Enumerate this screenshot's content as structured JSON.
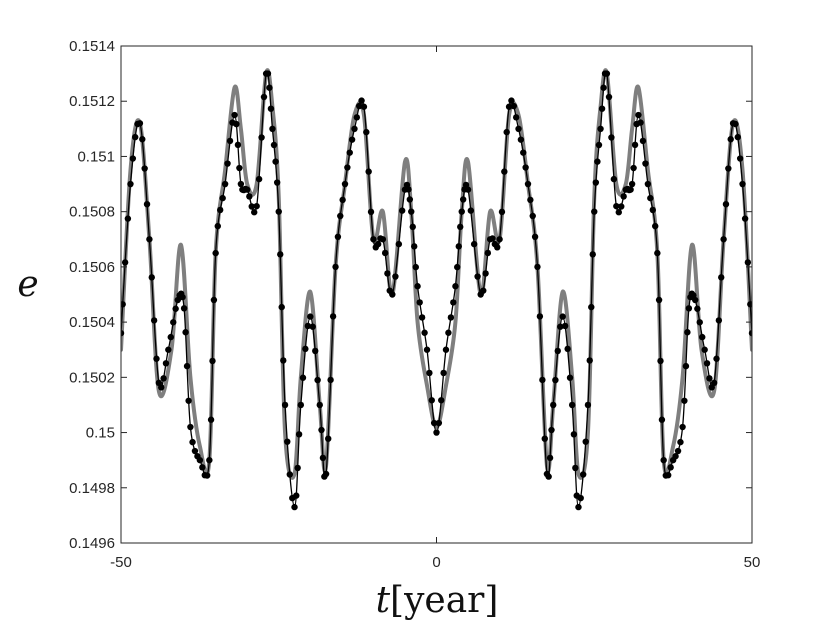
{
  "chart_data": {
    "type": "line",
    "title": "",
    "xlabel_var": "t",
    "xlabel_unit": "[year]",
    "ylabel": "e",
    "xlim": [
      -50,
      50
    ],
    "ylim": [
      0.1496,
      0.1514
    ],
    "x_ticks": [
      -50,
      0,
      50
    ],
    "x_tick_labels": [
      "-50",
      "0",
      "50"
    ],
    "y_ticks": [
      0.1496,
      0.1498,
      0.15,
      0.1502,
      0.1504,
      0.1506,
      0.1508,
      0.151,
      0.1512,
      0.1514
    ],
    "y_tick_labels": [
      "0.1496",
      "0.1498",
      "0.15",
      "0.1502",
      "0.1504",
      "0.1506",
      "0.1508",
      "0.151",
      "0.1512",
      "0.1514"
    ],
    "grid": false,
    "legend": "none",
    "colors": {
      "model_line": "#7f7f7f",
      "observed": "#000000",
      "axes": "#262626"
    },
    "series": [
      {
        "style": "thick-gray-line",
        "x": [
          -50,
          -48.5,
          -47,
          -45.5,
          -44,
          -42,
          -40.5,
          -39,
          -37.5,
          -36,
          -35,
          -33.5,
          -32,
          -31,
          -30,
          -28.5,
          -27,
          -26,
          -25,
          -24,
          -22.5,
          -21.5,
          -20,
          -18.5,
          -17.5,
          -16,
          -14.5,
          -13,
          -11.5,
          -10,
          -8.5,
          -7,
          -5,
          -4,
          -3,
          -1.5,
          0,
          1.5,
          3,
          4,
          5,
          7,
          8.5,
          10,
          11.5,
          13,
          14.5,
          16,
          17.5,
          18.5,
          20,
          21.5,
          22.5,
          24,
          25,
          26,
          27,
          28.5,
          30,
          31,
          32,
          33.5,
          35,
          36,
          37.5,
          39,
          40.5,
          42,
          44,
          45.5,
          47,
          48.5,
          50
        ],
        "y": [
          0.1503,
          0.15095,
          0.15112,
          0.1507,
          0.15015,
          0.1503,
          0.15068,
          0.1502,
          0.14995,
          0.1499,
          0.15065,
          0.15095,
          0.15125,
          0.1511,
          0.1509,
          0.1509,
          0.1513,
          0.15118,
          0.15085,
          0.15,
          0.14985,
          0.1502,
          0.15051,
          0.1501,
          0.14988,
          0.1506,
          0.1509,
          0.15115,
          0.15115,
          0.1507,
          0.1508,
          0.1505,
          0.15098,
          0.1508,
          0.1504,
          0.15017,
          0.15002,
          0.15017,
          0.1504,
          0.1508,
          0.15098,
          0.1505,
          0.1508,
          0.1507,
          0.15115,
          0.15115,
          0.1509,
          0.1506,
          0.14988,
          0.1501,
          0.15051,
          0.1502,
          0.14985,
          0.15,
          0.15085,
          0.15118,
          0.1513,
          0.1509,
          0.1509,
          0.1511,
          0.15125,
          0.15095,
          0.15065,
          0.1499,
          0.14995,
          0.1502,
          0.15068,
          0.1503,
          0.15015,
          0.1507,
          0.15112,
          0.15095,
          0.1503
        ]
      },
      {
        "style": "black-line-dots",
        "x": [
          -50,
          -48.5,
          -47,
          -45.5,
          -44,
          -42.5,
          -41,
          -40,
          -39,
          -37.5,
          -36,
          -35,
          -33.5,
          -32,
          -31,
          -30,
          -28.5,
          -27,
          -26,
          -25,
          -24,
          -22.5,
          -21.5,
          -20,
          -18.5,
          -17.5,
          -16,
          -14.5,
          -13,
          -11.5,
          -10,
          -8.5,
          -7,
          -5,
          -4,
          -3,
          -1.5,
          0,
          1.5,
          3,
          4,
          5,
          7,
          8.5,
          10,
          11.5,
          13,
          14.5,
          16,
          17.5,
          18.5,
          20,
          21.5,
          22.5,
          24,
          25,
          26,
          27,
          28.5,
          30,
          31,
          32,
          33.5,
          35,
          36,
          37.5,
          39,
          40,
          41,
          42.5,
          44,
          45.5,
          47,
          48.5,
          50
        ],
        "y": [
          0.15036,
          0.1509,
          0.15112,
          0.1507,
          0.15018,
          0.1503,
          0.15048,
          0.15045,
          0.15002,
          0.1499,
          0.1499,
          0.15065,
          0.1509,
          0.15115,
          0.1509,
          0.15088,
          0.15082,
          0.1513,
          0.1511,
          0.1508,
          0.1501,
          0.14973,
          0.1501,
          0.15042,
          0.1501,
          0.14985,
          0.1506,
          0.1509,
          0.1511,
          0.15118,
          0.1507,
          0.1507,
          0.1505,
          0.15088,
          0.1508,
          0.15053,
          0.1503,
          0.15,
          0.1503,
          0.15053,
          0.1508,
          0.15088,
          0.1505,
          0.1507,
          0.1507,
          0.15118,
          0.1511,
          0.1509,
          0.1506,
          0.14985,
          0.1501,
          0.15042,
          0.1501,
          0.14973,
          0.1501,
          0.1508,
          0.1511,
          0.1513,
          0.15082,
          0.15088,
          0.1509,
          0.15115,
          0.1509,
          0.15065,
          0.1499,
          0.1499,
          0.15002,
          0.15045,
          0.15048,
          0.1503,
          0.15018,
          0.1507,
          0.15112,
          0.1509,
          0.15036
        ]
      }
    ]
  }
}
